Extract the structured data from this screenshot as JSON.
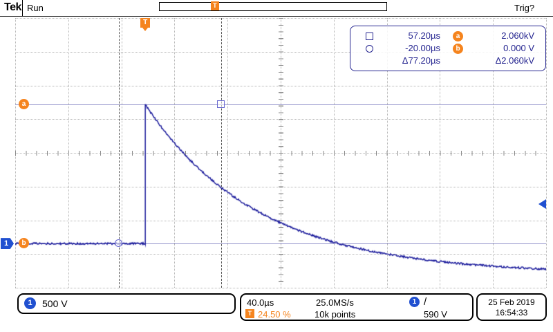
{
  "header": {
    "logo": "Tek",
    "acq_state": "Run",
    "trig_status": "Trig?"
  },
  "cursor_panel": {
    "rows": [
      {
        "symbol": "square",
        "time": "57.20µs",
        "badge": "a",
        "value": "2.060kV"
      },
      {
        "symbol": "circle",
        "time": "-20.00µs",
        "badge": "b",
        "value": "0.000 V"
      }
    ],
    "delta_time": "Δ77.20µs",
    "delta_value": "Δ2.060kV"
  },
  "markers": {
    "a": "a",
    "b": "b",
    "trigger": "T",
    "channel": "1"
  },
  "footer": {
    "channel": {
      "badge": "1",
      "scale": "500 V"
    },
    "timebase": "40.0µs",
    "sample_rate": "25.0MS/s",
    "record_length": "10k points",
    "trigger": {
      "source_badge": "1",
      "slope": "/",
      "level": "590 V",
      "position_badge": "T",
      "position": "24.50 %"
    },
    "date": "25 Feb 2019",
    "time": "16:54:33"
  },
  "colors": {
    "trace": "#1c1c9c",
    "navy": "#23238f",
    "orange": "#f5841e",
    "blue": "#2050d0",
    "grid": "#b4b4b4",
    "tick": "#8a8a8a",
    "cursor_line": "#555555"
  },
  "chart_data": {
    "type": "line",
    "title": "Oscilloscope single pulse capture, CH1",
    "x_units": "µs",
    "y_units": "V",
    "us_per_div": 40,
    "v_per_div": 500,
    "h_divs": 10,
    "v_divs": 8,
    "trigger_pos_percent": 24.5,
    "zero_div_from_top": 6.69,
    "baseline_v": 0,
    "peak_v": 2060,
    "tail_asymptote_v": -450,
    "decay_tau_us": 85,
    "noise_v": 14,
    "trigger_level_v": 590,
    "cursors": {
      "square": {
        "t_us": 57.2,
        "v": 2060
      },
      "circle": {
        "t_us": -20.0,
        "v": 0
      }
    }
  }
}
